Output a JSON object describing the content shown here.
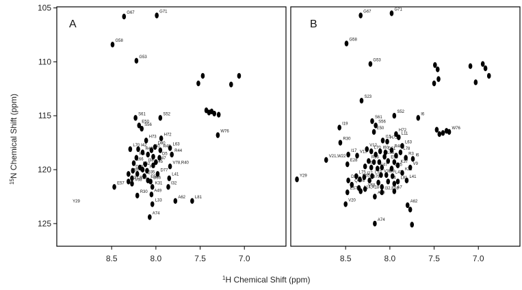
{
  "chart_data": {
    "type": "scatter",
    "xlabel_prefix": "1",
    "xlabel": "H Chemical Shift (ppm)",
    "ylabel_prefix": "15",
    "ylabel": "N Chemical Shift (ppm)",
    "x_reversed": true,
    "xlim": [
      9.12,
      6.53
    ],
    "ylim": [
      104.9,
      127.1
    ],
    "x_ticks": [
      "8.5",
      "8.0",
      "7.5",
      "7.0"
    ],
    "y_ticks": [
      "105",
      "110",
      "115",
      "120",
      "125"
    ],
    "grid": false,
    "peak_color": "#000000",
    "panels": [
      {
        "label": "A",
        "peaks": [
          {
            "x": 8.36,
            "y": 105.8,
            "label": "G67"
          },
          {
            "x": 7.99,
            "y": 105.7,
            "label": "G71"
          },
          {
            "x": 8.49,
            "y": 108.4,
            "label": "G58"
          },
          {
            "x": 8.22,
            "y": 109.9,
            "label": "G53"
          },
          {
            "x": 7.52,
            "y": 112.0
          },
          {
            "x": 7.47,
            "y": 111.3
          },
          {
            "x": 7.15,
            "y": 112.1
          },
          {
            "x": 7.06,
            "y": 111.3
          },
          {
            "x": 7.43,
            "y": 114.5
          },
          {
            "x": 7.4,
            "y": 114.7
          },
          {
            "x": 7.37,
            "y": 114.6
          },
          {
            "x": 7.34,
            "y": 114.8
          },
          {
            "x": 7.29,
            "y": 114.9
          },
          {
            "x": 7.3,
            "y": 116.8,
            "label": "W76"
          },
          {
            "x": 8.23,
            "y": 115.2,
            "label": "S61"
          },
          {
            "x": 7.95,
            "y": 115.2,
            "label": "S52"
          },
          {
            "x": 8.19,
            "y": 115.9,
            "label": "E50"
          },
          {
            "x": 8.16,
            "y": 116.2,
            "label": "S56"
          },
          {
            "x": 7.94,
            "y": 117.1,
            "label": "H72"
          },
          {
            "x": 8.11,
            "y": 117.3,
            "label": "H73"
          },
          {
            "x": 7.84,
            "y": 118.0,
            "label": "L63"
          },
          {
            "x": 8.01,
            "y": 117.9,
            "label": "D80"
          },
          {
            "x": 8.29,
            "y": 118.1,
            "label": "L70"
          },
          {
            "x": 8.2,
            "y": 118.1,
            "label": "I42"
          },
          {
            "x": 8.05,
            "y": 118.2,
            "label": "I60"
          },
          {
            "x": 7.95,
            "y": 118.2,
            "label": "R48"
          },
          {
            "x": 7.82,
            "y": 118.6,
            "label": "R44"
          },
          {
            "x": 8.15,
            "y": 118.4,
            "label": "R43"
          },
          {
            "x": 8.09,
            "y": 118.6
          },
          {
            "x": 8.03,
            "y": 118.8
          },
          {
            "x": 8.22,
            "y": 118.9,
            "label": "I46"
          },
          {
            "x": 7.96,
            "y": 118.9,
            "label": "D5"
          },
          {
            "x": 8.0,
            "y": 119.3,
            "label": "E47"
          },
          {
            "x": 8.25,
            "y": 119.4,
            "label": "L66"
          },
          {
            "x": 8.12,
            "y": 119.5,
            "label": "I38"
          },
          {
            "x": 8.03,
            "y": 119.6,
            "label": "L45"
          },
          {
            "x": 7.84,
            "y": 119.7,
            "label": "V78,R40"
          },
          {
            "x": 8.18,
            "y": 119.8,
            "label": "E62"
          },
          {
            "x": 8.15,
            "y": 120.0
          },
          {
            "x": 8.26,
            "y": 120.1,
            "label": "D79"
          },
          {
            "x": 8.1,
            "y": 120.1,
            "label": "R3"
          },
          {
            "x": 8.31,
            "y": 120.4,
            "label": "E55"
          },
          {
            "x": 7.98,
            "y": 120.4,
            "label": "D77"
          },
          {
            "x": 8.21,
            "y": 120.4,
            "label": "I5"
          },
          {
            "x": 8.13,
            "y": 120.6,
            "label": "Q35"
          },
          {
            "x": 8.27,
            "y": 120.8
          },
          {
            "x": 7.85,
            "y": 120.8,
            "label": "L41"
          },
          {
            "x": 8.09,
            "y": 121.0,
            "label": "E59"
          },
          {
            "x": 8.06,
            "y": 121.1,
            "label": "D36"
          },
          {
            "x": 8.31,
            "y": 121.1,
            "label": "K37,R36"
          },
          {
            "x": 8.27,
            "y": 121.3,
            "label": "V68"
          },
          {
            "x": 8.04,
            "y": 121.6,
            "label": "K31"
          },
          {
            "x": 7.86,
            "y": 121.6,
            "label": "I32"
          },
          {
            "x": 8.47,
            "y": 121.6,
            "label": "E57"
          },
          {
            "x": 8.05,
            "y": 122.3,
            "label": "A49"
          },
          {
            "x": 8.21,
            "y": 122.4,
            "label": "R30"
          },
          {
            "x": 7.78,
            "y": 122.9,
            "label": "A62"
          },
          {
            "x": 7.59,
            "y": 122.9,
            "label": "L81"
          },
          {
            "x": 8.04,
            "y": 123.2,
            "label": "L33"
          },
          {
            "x": 8.07,
            "y": 124.4,
            "label": "A74"
          },
          {
            "x": 8.9,
            "y": 122.9,
            "label": "Y29",
            "unplotted": true
          }
        ]
      },
      {
        "label": "B",
        "peaks": [
          {
            "x": 8.33,
            "y": 105.7,
            "label": "G67"
          },
          {
            "x": 7.98,
            "y": 105.5,
            "label": "G71"
          },
          {
            "x": 8.49,
            "y": 108.3,
            "label": "G58"
          },
          {
            "x": 8.22,
            "y": 110.2,
            "label": "G53"
          },
          {
            "x": 7.49,
            "y": 110.3
          },
          {
            "x": 7.46,
            "y": 110.7
          },
          {
            "x": 7.45,
            "y": 111.6
          },
          {
            "x": 7.5,
            "y": 112.0
          },
          {
            "x": 7.09,
            "y": 110.4
          },
          {
            "x": 6.95,
            "y": 110.2
          },
          {
            "x": 6.92,
            "y": 110.6
          },
          {
            "x": 6.88,
            "y": 111.3
          },
          {
            "x": 7.03,
            "y": 111.9
          },
          {
            "x": 8.32,
            "y": 113.6,
            "label": "S23"
          },
          {
            "x": 7.95,
            "y": 115.0,
            "label": "S52"
          },
          {
            "x": 7.68,
            "y": 115.2,
            "label": "I6"
          },
          {
            "x": 8.2,
            "y": 115.5,
            "label": "S61"
          },
          {
            "x": 8.16,
            "y": 115.9,
            "label": "S56"
          },
          {
            "x": 8.57,
            "y": 116.1,
            "label": "I19"
          },
          {
            "x": 8.18,
            "y": 116.5,
            "label": "E50"
          },
          {
            "x": 7.93,
            "y": 116.7,
            "label": "H72"
          },
          {
            "x": 7.9,
            "y": 117.0,
            "label": "L11"
          },
          {
            "x": 8.08,
            "y": 117.3,
            "label": "I15"
          },
          {
            "x": 8.03,
            "y": 117.4,
            "label": "H73"
          },
          {
            "x": 7.86,
            "y": 117.8,
            "label": "L63"
          },
          {
            "x": 7.47,
            "y": 116.3
          },
          {
            "x": 7.44,
            "y": 116.7
          },
          {
            "x": 7.4,
            "y": 116.6
          },
          {
            "x": 7.36,
            "y": 116.4
          },
          {
            "x": 7.33,
            "y": 116.5,
            "label": "W76"
          },
          {
            "x": 8.56,
            "y": 117.5,
            "label": "R30"
          },
          {
            "x": 8.26,
            "y": 118.1,
            "label": "V12"
          },
          {
            "x": 8.21,
            "y": 118.3,
            "label": "L70"
          },
          {
            "x": 8.11,
            "y": 118.3,
            "label": "I60"
          },
          {
            "x": 8.05,
            "y": 118.4,
            "label": "D51"
          },
          {
            "x": 7.98,
            "y": 118.2,
            "label": "R48"
          },
          {
            "x": 7.88,
            "y": 118.4,
            "label": "L78"
          },
          {
            "x": 8.47,
            "y": 118.6,
            "label": "I17"
          },
          {
            "x": 8.37,
            "y": 118.7,
            "label": "V13"
          },
          {
            "x": 8.16,
            "y": 118.6
          },
          {
            "x": 8.06,
            "y": 118.8,
            "label": "L66"
          },
          {
            "x": 7.93,
            "y": 118.7
          },
          {
            "x": 7.82,
            "y": 118.9,
            "label": "R3"
          },
          {
            "x": 7.74,
            "y": 119.0,
            "label": "I6"
          },
          {
            "x": 8.72,
            "y": 119.1,
            "label": "V21,W22"
          },
          {
            "x": 8.24,
            "y": 119.2,
            "label": "R36"
          },
          {
            "x": 8.18,
            "y": 119.3
          },
          {
            "x": 8.12,
            "y": 119.3
          },
          {
            "x": 8.02,
            "y": 119.2,
            "label": "E59"
          },
          {
            "x": 7.95,
            "y": 119.3
          },
          {
            "x": 8.48,
            "y": 119.5,
            "label": "E28"
          },
          {
            "x": 8.28,
            "y": 119.7,
            "label": "L68"
          },
          {
            "x": 8.21,
            "y": 119.8
          },
          {
            "x": 8.14,
            "y": 119.9,
            "label": "E47"
          },
          {
            "x": 8.09,
            "y": 119.8
          },
          {
            "x": 7.98,
            "y": 119.9,
            "label": "Q35"
          },
          {
            "x": 7.91,
            "y": 119.6,
            "label": "K37"
          },
          {
            "x": 7.77,
            "y": 119.8,
            "label": "V9"
          },
          {
            "x": 7.86,
            "y": 120.3,
            "label": "K31"
          },
          {
            "x": 8.38,
            "y": 120.6,
            "label": "L75"
          },
          {
            "x": 8.29,
            "y": 120.7,
            "label": "I27"
          },
          {
            "x": 8.2,
            "y": 120.6,
            "label": "L33"
          },
          {
            "x": 8.1,
            "y": 120.5,
            "label": "V35"
          },
          {
            "x": 8.04,
            "y": 120.5,
            "label": "I38"
          },
          {
            "x": 7.97,
            "y": 120.6,
            "label": "L42"
          },
          {
            "x": 8.47,
            "y": 121.0,
            "label": "D39"
          },
          {
            "x": 8.34,
            "y": 120.9,
            "label": "E55"
          },
          {
            "x": 8.23,
            "y": 121.0,
            "label": "D79"
          },
          {
            "x": 8.13,
            "y": 121.2
          },
          {
            "x": 8.02,
            "y": 121.1,
            "label": "S4"
          },
          {
            "x": 7.95,
            "y": 121.3
          },
          {
            "x": 7.81,
            "y": 121.0,
            "label": "L41"
          },
          {
            "x": 7.91,
            "y": 121.1,
            "label": "L81"
          },
          {
            "x": 8.43,
            "y": 121.4,
            "label": "Q4,I6"
          },
          {
            "x": 8.35,
            "y": 121.7
          },
          {
            "x": 8.28,
            "y": 121.8,
            "label": "V68"
          },
          {
            "x": 8.09,
            "y": 121.6
          },
          {
            "x": 8.48,
            "y": 122.1,
            "label": "E57"
          },
          {
            "x": 8.33,
            "y": 122.0,
            "label": "A14,A18"
          },
          {
            "x": 8.09,
            "y": 122.1,
            "label": "I32,E59"
          },
          {
            "x": 7.95,
            "y": 122.0,
            "label": "A7"
          },
          {
            "x": 8.17,
            "y": 122.5,
            "label": "A49"
          },
          {
            "x": 8.5,
            "y": 123.2,
            "label": "V20"
          },
          {
            "x": 7.8,
            "y": 123.3,
            "label": "A62"
          },
          {
            "x": 7.77,
            "y": 123.7
          },
          {
            "x": 8.17,
            "y": 125.0,
            "label": "A74"
          },
          {
            "x": 7.75,
            "y": 125.1
          },
          {
            "x": 9.05,
            "y": 120.9,
            "label": "Y29"
          }
        ]
      }
    ]
  }
}
